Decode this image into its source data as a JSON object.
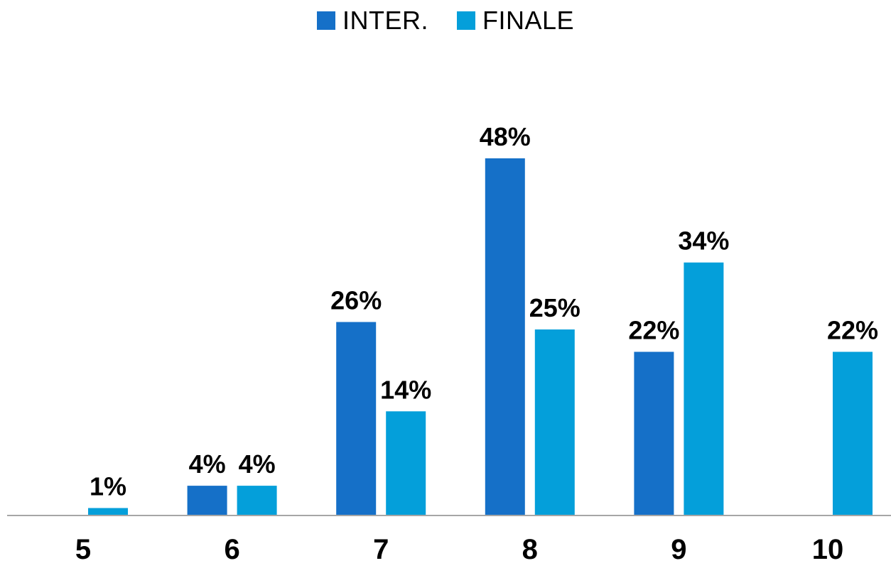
{
  "chart_data": {
    "type": "bar",
    "title": "",
    "xlabel": "",
    "ylabel": "",
    "categories": [
      "5",
      "6",
      "7",
      "8",
      "9",
      "10"
    ],
    "series": [
      {
        "name": "INTER.",
        "color": "#1570C8",
        "values": [
          0,
          4,
          26,
          48,
          22,
          0
        ],
        "labels": [
          "",
          "4%",
          "26%",
          "48%",
          "22%",
          ""
        ]
      },
      {
        "name": "FINALE",
        "color": "#049FDA",
        "values": [
          1,
          4,
          14,
          25,
          34,
          22
        ],
        "labels": [
          "1%",
          "4%",
          "14%",
          "25%",
          "34%",
          "22%"
        ]
      }
    ],
    "value_unit": "%",
    "ylim": [
      0,
      48
    ],
    "grid": false,
    "legend_position": "top-center",
    "axis_color": "#A6A6A6"
  }
}
